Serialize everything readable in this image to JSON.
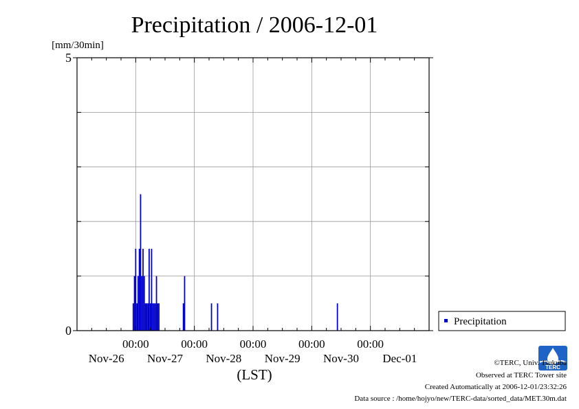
{
  "chart_data": {
    "type": "bar",
    "title": "Precipitation / 2006-12-01",
    "ylabel": "[mm/30min]",
    "xlabel": "(LST)",
    "ylim": [
      0,
      5
    ],
    "yticks_labeled": [
      "0",
      "5"
    ],
    "ygrid_step": 1,
    "xlim": [
      "2006-11-26T00:00",
      "2006-12-02T00:00"
    ],
    "xticks": [
      {
        "time": "00:00",
        "date": "Nov-27"
      },
      {
        "time": "00:00",
        "date": "Nov-28"
      },
      {
        "time": "00:00",
        "date": "Nov-29"
      },
      {
        "time": "00:00",
        "date": "Nov-30"
      },
      {
        "time": "00:00",
        "date": "Dec-01"
      }
    ],
    "xdate_labels": [
      "Nov-26",
      "Nov-27",
      "Nov-28",
      "Nov-29",
      "Nov-30",
      "Dec-01"
    ],
    "grid": true,
    "legend_position": "bottom-right",
    "series": [
      {
        "name": "Precipitation",
        "color": "#0000cc",
        "points": [
          {
            "x": "2006-11-26T23:00",
            "y": 0.5
          },
          {
            "x": "2006-11-26T23:30",
            "y": 1.0
          },
          {
            "x": "2006-11-27T00:00",
            "y": 1.5
          },
          {
            "x": "2006-11-27T00:30",
            "y": 0.5
          },
          {
            "x": "2006-11-27T01:00",
            "y": 1.0
          },
          {
            "x": "2006-11-27T01:30",
            "y": 1.5
          },
          {
            "x": "2006-11-27T02:00",
            "y": 2.5
          },
          {
            "x": "2006-11-27T02:30",
            "y": 1.0
          },
          {
            "x": "2006-11-27T03:00",
            "y": 1.5
          },
          {
            "x": "2006-11-27T03:30",
            "y": 1.0
          },
          {
            "x": "2006-11-27T04:00",
            "y": 0.5
          },
          {
            "x": "2006-11-27T04:30",
            "y": 0.5
          },
          {
            "x": "2006-11-27T05:00",
            "y": 0.5
          },
          {
            "x": "2006-11-27T05:30",
            "y": 1.5
          },
          {
            "x": "2006-11-27T06:00",
            "y": 0.5
          },
          {
            "x": "2006-11-27T06:30",
            "y": 1.5
          },
          {
            "x": "2006-11-27T07:00",
            "y": 0.5
          },
          {
            "x": "2006-11-27T07:30",
            "y": 0.5
          },
          {
            "x": "2006-11-27T08:00",
            "y": 0.5
          },
          {
            "x": "2006-11-27T08:30",
            "y": 1.0
          },
          {
            "x": "2006-11-27T09:00",
            "y": 0.5
          },
          {
            "x": "2006-11-27T09:30",
            "y": 0.5
          },
          {
            "x": "2006-11-27T19:30",
            "y": 0.5
          },
          {
            "x": "2006-11-27T20:00",
            "y": 1.0
          },
          {
            "x": "2006-11-28T07:00",
            "y": 0.5
          },
          {
            "x": "2006-11-28T09:30",
            "y": 0.5
          },
          {
            "x": "2006-11-30T10:30",
            "y": 0.5
          }
        ]
      }
    ]
  },
  "legend": {
    "label": "Precipitation"
  },
  "credits": {
    "copyright": "©TERC, Univ. Tsukuba",
    "site": "Observed at TERC Tower site",
    "created": "Created Automatically at 2006-12-01/23:32:26",
    "source": "Data source : /home/hojyo/new/TERC-data/sorted_data/MET.30m.dat",
    "logo_text": "TERC"
  }
}
